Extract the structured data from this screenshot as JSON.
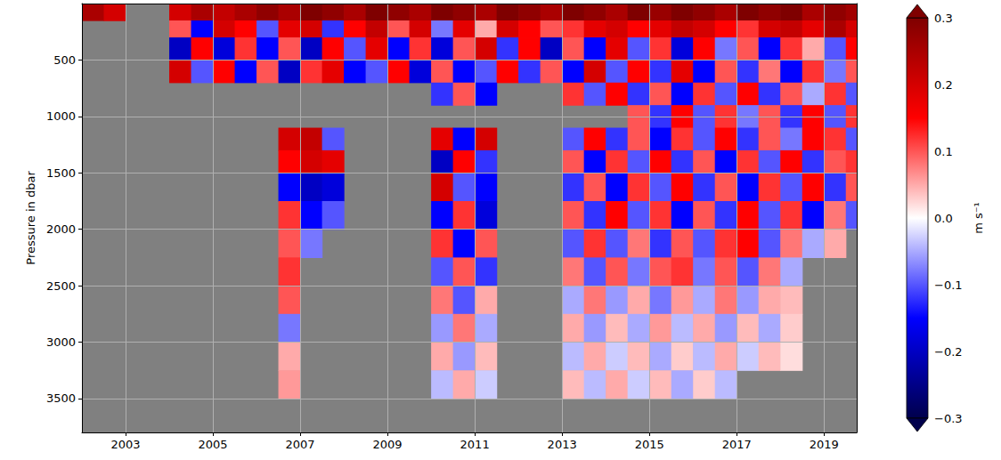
{
  "chart_data": {
    "type": "heatmap",
    "y_label": "Pressure in dbar",
    "colorbar_label": "m s⁻¹",
    "grid": true,
    "xlim": [
      2002,
      2019.75
    ],
    "xticks": [
      2003,
      2005,
      2007,
      2009,
      2011,
      2013,
      2015,
      2017,
      2019
    ],
    "ylim": [
      3800,
      0
    ],
    "yticks": [
      500,
      1000,
      1500,
      2000,
      2500,
      3000,
      3500
    ],
    "colorbar_range": [
      -0.3,
      0.3
    ],
    "colorbar_ticks": [
      {
        "value": -0.3,
        "label": "−0.3"
      },
      {
        "value": -0.2,
        "label": "−0.2"
      },
      {
        "value": -0.1,
        "label": "−0.1"
      },
      {
        "value": 0,
        "label": "0.0"
      },
      0.1,
      0.2,
      0.3
    ],
    "x_bins": [
      2002,
      2002.5,
      2003,
      2003.5,
      2004,
      2004.5,
      2005,
      2005.5,
      2006,
      2006.5,
      2007,
      2007.5,
      2008,
      2008.5,
      2009,
      2009.5,
      2010,
      2010.5,
      2011,
      2011.5,
      2012,
      2012.5,
      2013,
      2013.5,
      2014,
      2014.5,
      2015,
      2015.5,
      2016,
      2016.5,
      2017,
      2017.5,
      2018,
      2018.5,
      2019,
      2019.5,
      2019.75
    ],
    "y_bins": [
      0,
      150,
      300,
      500,
      700,
      900,
      1100,
      1300,
      1500,
      1750,
      2000,
      2250,
      2500,
      2750,
      3000,
      3250,
      3500
    ],
    "cells": [
      [
        0.25,
        0.2,
        null,
        null,
        0.2,
        0.25,
        0.22,
        0.25,
        0.28,
        0.25,
        0.3,
        0.28,
        0.25,
        0.3,
        0.28,
        0.25,
        0.3,
        0.28,
        0.25,
        0.3,
        0.28,
        0.25,
        0.3,
        0.28,
        0.25,
        0.3,
        0.27,
        0.3,
        0.28,
        0.25,
        0.3,
        0.28,
        0.3,
        0.25,
        0.28,
        0.26
      ],
      [
        null,
        null,
        null,
        null,
        0.1,
        -0.15,
        0.2,
        0.15,
        -0.1,
        0.18,
        0.2,
        -0.12,
        0.15,
        0.22,
        0.1,
        0.2,
        -0.08,
        0.18,
        0.05,
        0.2,
        0.15,
        0.1,
        0.12,
        0.18,
        0.2,
        0.15,
        0.18,
        0.22,
        0.2,
        0.15,
        0.12,
        0.2,
        0.22,
        0.18,
        0.25,
        0.2
      ],
      [
        null,
        null,
        null,
        null,
        -0.2,
        0.15,
        -0.18,
        0.12,
        -0.15,
        0.1,
        -0.2,
        0.15,
        -0.1,
        0.18,
        -0.15,
        0.12,
        -0.18,
        0.1,
        0.2,
        -0.12,
        0.15,
        -0.2,
        0.1,
        -0.15,
        0.18,
        -0.1,
        0.12,
        -0.18,
        0.15,
        -0.08,
        0.1,
        -0.15,
        0.12,
        0.05,
        -0.1,
        0.15
      ],
      [
        null,
        null,
        null,
        null,
        0.2,
        -0.1,
        0.15,
        -0.15,
        0.1,
        -0.2,
        0.12,
        0.18,
        -0.15,
        -0.1,
        0.15,
        -0.18,
        0.1,
        -0.15,
        -0.1,
        0.15,
        -0.12,
        0.1,
        -0.15,
        0.2,
        -0.1,
        0.15,
        -0.12,
        0.18,
        -0.15,
        0.1,
        -0.12,
        0.08,
        -0.15,
        0.12,
        -0.08,
        0.1
      ],
      [
        null,
        null,
        null,
        null,
        null,
        null,
        null,
        null,
        null,
        null,
        null,
        null,
        null,
        null,
        null,
        null,
        -0.12,
        0.1,
        -0.15,
        null,
        null,
        null,
        0.12,
        -0.1,
        0.15,
        -0.12,
        0.1,
        -0.15,
        0.12,
        -0.1,
        0.15,
        -0.12,
        0.1,
        -0.05,
        0.12,
        -0.1
      ],
      [
        null,
        null,
        null,
        null,
        null,
        null,
        null,
        null,
        null,
        null,
        null,
        null,
        null,
        null,
        null,
        null,
        null,
        null,
        null,
        null,
        null,
        null,
        null,
        null,
        null,
        0.1,
        -0.12,
        0.15,
        -0.1,
        0.12,
        -0.08,
        0.1,
        -0.12,
        0.15,
        -0.1,
        0.12
      ],
      [
        null,
        null,
        null,
        null,
        null,
        null,
        null,
        null,
        null,
        0.2,
        0.22,
        -0.1,
        null,
        null,
        null,
        null,
        0.18,
        -0.15,
        0.2,
        null,
        null,
        null,
        -0.1,
        0.15,
        -0.12,
        0.1,
        -0.15,
        0.12,
        -0.1,
        0.15,
        -0.12,
        0.1,
        -0.08,
        0.15,
        0.12,
        -0.1
      ],
      [
        null,
        null,
        null,
        null,
        null,
        null,
        null,
        null,
        null,
        0.15,
        0.2,
        0.18,
        null,
        null,
        null,
        null,
        -0.2,
        0.15,
        -0.12,
        null,
        null,
        null,
        0.1,
        -0.15,
        0.12,
        -0.1,
        0.15,
        -0.12,
        0.1,
        -0.15,
        0.12,
        -0.1,
        0.15,
        -0.12,
        0.1,
        0.12
      ],
      [
        null,
        null,
        null,
        null,
        null,
        null,
        null,
        null,
        null,
        -0.15,
        -0.2,
        -0.18,
        null,
        null,
        null,
        null,
        0.2,
        -0.1,
        -0.15,
        null,
        null,
        null,
        -0.12,
        0.1,
        -0.15,
        0.12,
        -0.1,
        0.15,
        -0.12,
        0.1,
        -0.15,
        0.12,
        -0.1,
        0.15,
        -0.12,
        0.1
      ],
      [
        null,
        null,
        null,
        null,
        null,
        null,
        null,
        null,
        null,
        0.12,
        -0.15,
        -0.1,
        null,
        null,
        null,
        null,
        -0.15,
        0.12,
        -0.18,
        null,
        null,
        null,
        0.1,
        -0.12,
        0.15,
        -0.1,
        0.12,
        -0.15,
        0.1,
        -0.12,
        0.15,
        -0.1,
        0.12,
        -0.15,
        0.08,
        -0.1
      ],
      [
        null,
        null,
        null,
        null,
        null,
        null,
        null,
        null,
        null,
        0.1,
        -0.08,
        null,
        null,
        null,
        null,
        null,
        0.12,
        -0.15,
        0.1,
        null,
        null,
        null,
        -0.1,
        0.12,
        -0.1,
        0.08,
        -0.12,
        0.1,
        -0.1,
        0.12,
        0.15,
        -0.1,
        0.08,
        -0.05,
        0.05,
        null
      ],
      [
        null,
        null,
        null,
        null,
        null,
        null,
        null,
        null,
        null,
        0.12,
        null,
        null,
        null,
        null,
        null,
        null,
        -0.1,
        0.1,
        -0.12,
        null,
        null,
        null,
        0.08,
        -0.1,
        0.1,
        -0.08,
        0.1,
        0.12,
        -0.08,
        0.1,
        -0.1,
        0.08,
        -0.05,
        null,
        null,
        null
      ],
      [
        null,
        null,
        null,
        null,
        null,
        null,
        null,
        null,
        null,
        0.1,
        null,
        null,
        null,
        null,
        null,
        null,
        0.08,
        -0.1,
        0.05,
        null,
        null,
        null,
        -0.05,
        0.08,
        -0.06,
        0.05,
        -0.08,
        0.06,
        -0.05,
        0.08,
        -0.06,
        0.05,
        0.04,
        null,
        null,
        null
      ],
      [
        null,
        null,
        null,
        null,
        null,
        null,
        null,
        null,
        null,
        -0.08,
        null,
        null,
        null,
        null,
        null,
        null,
        -0.06,
        0.08,
        -0.05,
        null,
        null,
        null,
        0.05,
        -0.06,
        0.04,
        -0.05,
        0.06,
        -0.04,
        0.05,
        -0.06,
        0.04,
        -0.05,
        0.03,
        null,
        null,
        null
      ],
      [
        null,
        null,
        null,
        null,
        null,
        null,
        null,
        null,
        null,
        0.05,
        null,
        null,
        null,
        null,
        null,
        null,
        0.05,
        -0.06,
        0.04,
        null,
        null,
        null,
        -0.04,
        0.05,
        -0.03,
        0.04,
        -0.05,
        0.03,
        -0.04,
        0.05,
        -0.03,
        0.04,
        0.02,
        null,
        null,
        null
      ],
      [
        null,
        null,
        null,
        null,
        null,
        null,
        null,
        null,
        null,
        0.06,
        null,
        null,
        null,
        null,
        null,
        null,
        -0.04,
        0.05,
        -0.03,
        null,
        null,
        null,
        0.04,
        -0.04,
        0.05,
        -0.03,
        0.04,
        -0.05,
        0.03,
        -0.04,
        null,
        null,
        null,
        null,
        null,
        null
      ]
    ]
  }
}
